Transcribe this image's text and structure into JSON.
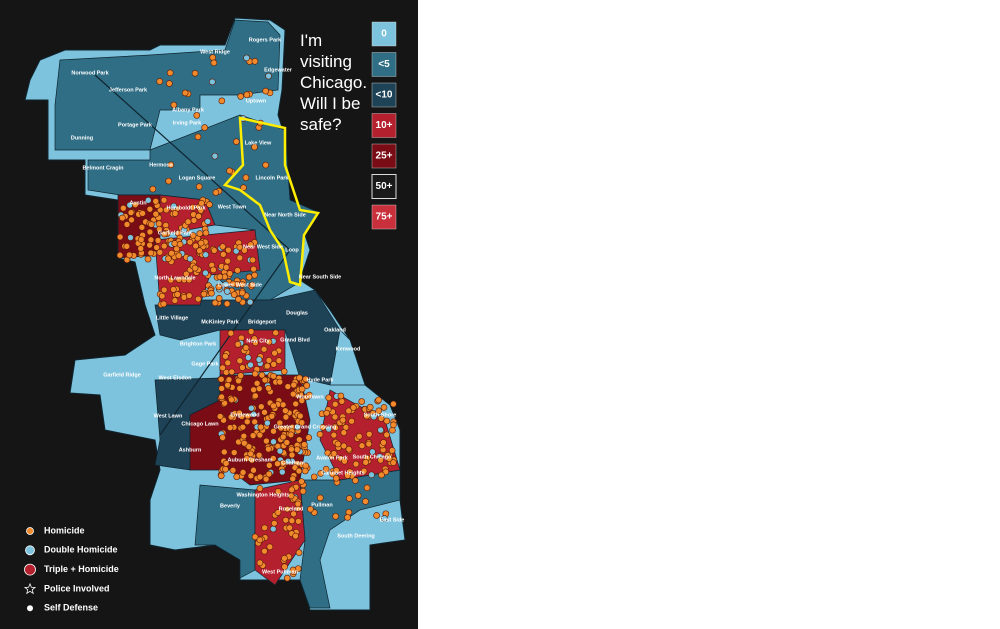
{
  "question_lines": [
    "I'm",
    "visiting",
    "Chicago.",
    "Will I be",
    "safe?"
  ],
  "scale": [
    {
      "label": "0",
      "color": "#7ec3dd"
    },
    {
      "label": "<5",
      "color": "#2f6e85"
    },
    {
      "label": "<10",
      "color": "#1f4356"
    },
    {
      "label": "10+",
      "color": "#b5202e"
    },
    {
      "label": "25+",
      "color": "#7a0c16"
    },
    {
      "label": "50+",
      "color": "#1a1a1a"
    },
    {
      "label": "75+",
      "color": "#c9303c"
    }
  ],
  "legend": [
    "Homicide",
    "Double Homicide",
    "Triple + Homicide",
    "Police Involved",
    "Self Defense"
  ],
  "neighborhoods": [
    "Rogers Park",
    "West Ridge",
    "Edgewater",
    "Norwood Park",
    "Jefferson Park",
    "Albany Park",
    "Uptown",
    "Portage Park",
    "Irving Park",
    "Dunning",
    "Lake View",
    "Belmont Cragin",
    "Hermosa",
    "Logan Square",
    "Lincoln Park",
    "Austin",
    "Humboldt Park",
    "West Town",
    "Near North Side",
    "Garfield Park",
    "Near West Side",
    "Loop",
    "Near South Side",
    "North Lawndale",
    "Lower West Side",
    "Douglas",
    "Little Village",
    "McKinley Park",
    "Bridgeport",
    "Oakland",
    "Grand Blvd",
    "Brighton Park",
    "New City",
    "Kenwood",
    "Gage Park",
    "Garfield Ridge",
    "West Elsdon",
    "Hyde Park",
    "Woodlawn",
    "West Lawn",
    "Chicago Lawn",
    "Englewood",
    "South Shore",
    "Greater Grand Crossing",
    "Ashburn",
    "Auburn Gresham",
    "Chatham",
    "Avalon Park",
    "South Chicago",
    "Calumet Heights",
    "Washington Heights",
    "Beverly",
    "Roseland",
    "Pullman",
    "East Side",
    "South Deering",
    "West Pullman"
  ]
}
